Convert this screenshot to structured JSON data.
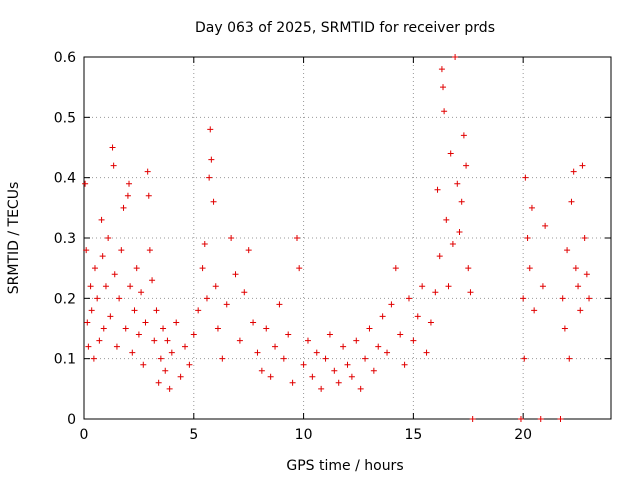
{
  "chart_data": {
    "type": "scatter",
    "title": "Day 063 of 2025, SRMTID for receiver prds",
    "xlabel": "GPS time / hours",
    "ylabel": "SRMTID / TECUs",
    "xlim": [
      0,
      24
    ],
    "ylim": [
      0,
      0.6
    ],
    "xticks": [
      0,
      5,
      10,
      15,
      20
    ],
    "xtick_labels": [
      "0",
      "5",
      "10",
      "15",
      "20"
    ],
    "yticks": [
      0,
      0.1,
      0.2,
      0.3,
      0.4,
      0.5,
      0.6
    ],
    "ytick_labels": [
      "0",
      "0.1",
      "0.2",
      "0.3",
      "0.4",
      "0.5",
      "0.6"
    ],
    "grid": true,
    "marker": "plus",
    "color": "#e00000",
    "series": [
      {
        "name": "SRMTID",
        "points": [
          [
            0.05,
            0.39
          ],
          [
            0.1,
            0.28
          ],
          [
            0.15,
            0.16
          ],
          [
            0.2,
            0.12
          ],
          [
            0.3,
            0.22
          ],
          [
            0.35,
            0.18
          ],
          [
            0.45,
            0.1
          ],
          [
            0.5,
            0.25
          ],
          [
            0.6,
            0.2
          ],
          [
            0.7,
            0.13
          ],
          [
            0.8,
            0.33
          ],
          [
            0.85,
            0.27
          ],
          [
            0.9,
            0.15
          ],
          [
            1.0,
            0.22
          ],
          [
            1.1,
            0.3
          ],
          [
            1.2,
            0.17
          ],
          [
            1.3,
            0.45
          ],
          [
            1.35,
            0.42
          ],
          [
            1.4,
            0.24
          ],
          [
            1.5,
            0.12
          ],
          [
            1.6,
            0.2
          ],
          [
            1.7,
            0.28
          ],
          [
            1.8,
            0.35
          ],
          [
            1.9,
            0.15
          ],
          [
            2.0,
            0.37
          ],
          [
            2.05,
            0.39
          ],
          [
            2.1,
            0.22
          ],
          [
            2.2,
            0.11
          ],
          [
            2.3,
            0.18
          ],
          [
            2.4,
            0.25
          ],
          [
            2.5,
            0.14
          ],
          [
            2.6,
            0.21
          ],
          [
            2.7,
            0.09
          ],
          [
            2.8,
            0.16
          ],
          [
            2.9,
            0.41
          ],
          [
            2.95,
            0.37
          ],
          [
            3.0,
            0.28
          ],
          [
            3.1,
            0.23
          ],
          [
            3.2,
            0.13
          ],
          [
            3.3,
            0.18
          ],
          [
            3.4,
            0.06
          ],
          [
            3.5,
            0.1
          ],
          [
            3.6,
            0.15
          ],
          [
            3.7,
            0.08
          ],
          [
            3.8,
            0.13
          ],
          [
            3.9,
            0.05
          ],
          [
            4.0,
            0.11
          ],
          [
            4.2,
            0.16
          ],
          [
            4.4,
            0.07
          ],
          [
            4.6,
            0.12
          ],
          [
            4.8,
            0.09
          ],
          [
            5.0,
            0.14
          ],
          [
            5.2,
            0.18
          ],
          [
            5.4,
            0.25
          ],
          [
            5.5,
            0.29
          ],
          [
            5.6,
            0.2
          ],
          [
            5.7,
            0.4
          ],
          [
            5.75,
            0.48
          ],
          [
            5.8,
            0.43
          ],
          [
            5.9,
            0.36
          ],
          [
            6.0,
            0.22
          ],
          [
            6.1,
            0.15
          ],
          [
            6.3,
            0.1
          ],
          [
            6.5,
            0.19
          ],
          [
            6.7,
            0.3
          ],
          [
            6.9,
            0.24
          ],
          [
            7.1,
            0.13
          ],
          [
            7.3,
            0.21
          ],
          [
            7.5,
            0.28
          ],
          [
            7.7,
            0.16
          ],
          [
            7.9,
            0.11
          ],
          [
            8.1,
            0.08
          ],
          [
            8.3,
            0.15
          ],
          [
            8.5,
            0.07
          ],
          [
            8.7,
            0.12
          ],
          [
            8.9,
            0.19
          ],
          [
            9.1,
            0.1
          ],
          [
            9.3,
            0.14
          ],
          [
            9.5,
            0.06
          ],
          [
            9.7,
            0.3
          ],
          [
            9.8,
            0.25
          ],
          [
            10.0,
            0.09
          ],
          [
            10.2,
            0.13
          ],
          [
            10.4,
            0.07
          ],
          [
            10.6,
            0.11
          ],
          [
            10.8,
            0.05
          ],
          [
            11.0,
            0.1
          ],
          [
            11.2,
            0.14
          ],
          [
            11.4,
            0.08
          ],
          [
            11.6,
            0.06
          ],
          [
            11.8,
            0.12
          ],
          [
            12.0,
            0.09
          ],
          [
            12.2,
            0.07
          ],
          [
            12.4,
            0.13
          ],
          [
            12.6,
            0.05
          ],
          [
            12.8,
            0.1
          ],
          [
            13.0,
            0.15
          ],
          [
            13.2,
            0.08
          ],
          [
            13.4,
            0.12
          ],
          [
            13.6,
            0.17
          ],
          [
            13.8,
            0.11
          ],
          [
            14.0,
            0.19
          ],
          [
            14.2,
            0.25
          ],
          [
            14.4,
            0.14
          ],
          [
            14.6,
            0.09
          ],
          [
            14.8,
            0.2
          ],
          [
            15.0,
            0.13
          ],
          [
            15.2,
            0.17
          ],
          [
            15.4,
            0.22
          ],
          [
            15.6,
            0.11
          ],
          [
            15.8,
            0.16
          ],
          [
            16.0,
            0.21
          ],
          [
            16.1,
            0.38
          ],
          [
            16.2,
            0.27
          ],
          [
            16.3,
            0.58
          ],
          [
            16.35,
            0.55
          ],
          [
            16.4,
            0.51
          ],
          [
            16.5,
            0.33
          ],
          [
            16.6,
            0.22
          ],
          [
            16.7,
            0.44
          ],
          [
            16.8,
            0.29
          ],
          [
            16.9,
            0.6
          ],
          [
            17.0,
            0.39
          ],
          [
            17.1,
            0.31
          ],
          [
            17.2,
            0.36
          ],
          [
            17.3,
            0.47
          ],
          [
            17.4,
            0.42
          ],
          [
            17.5,
            0.25
          ],
          [
            17.6,
            0.21
          ],
          [
            17.7,
            0.0
          ],
          [
            19.9,
            0.0
          ],
          [
            20.0,
            0.2
          ],
          [
            20.05,
            0.1
          ],
          [
            20.1,
            0.4
          ],
          [
            20.2,
            0.3
          ],
          [
            20.3,
            0.25
          ],
          [
            20.4,
            0.35
          ],
          [
            20.5,
            0.18
          ],
          [
            20.8,
            0.0
          ],
          [
            20.9,
            0.22
          ],
          [
            21.0,
            0.32
          ],
          [
            21.7,
            0.0
          ],
          [
            21.8,
            0.2
          ],
          [
            21.9,
            0.15
          ],
          [
            22.0,
            0.28
          ],
          [
            22.1,
            0.1
          ],
          [
            22.2,
            0.36
          ],
          [
            22.3,
            0.41
          ],
          [
            22.4,
            0.25
          ],
          [
            22.5,
            0.22
          ],
          [
            22.6,
            0.18
          ],
          [
            22.7,
            0.42
          ],
          [
            22.8,
            0.3
          ],
          [
            22.9,
            0.24
          ],
          [
            23.0,
            0.2
          ]
        ]
      }
    ]
  }
}
